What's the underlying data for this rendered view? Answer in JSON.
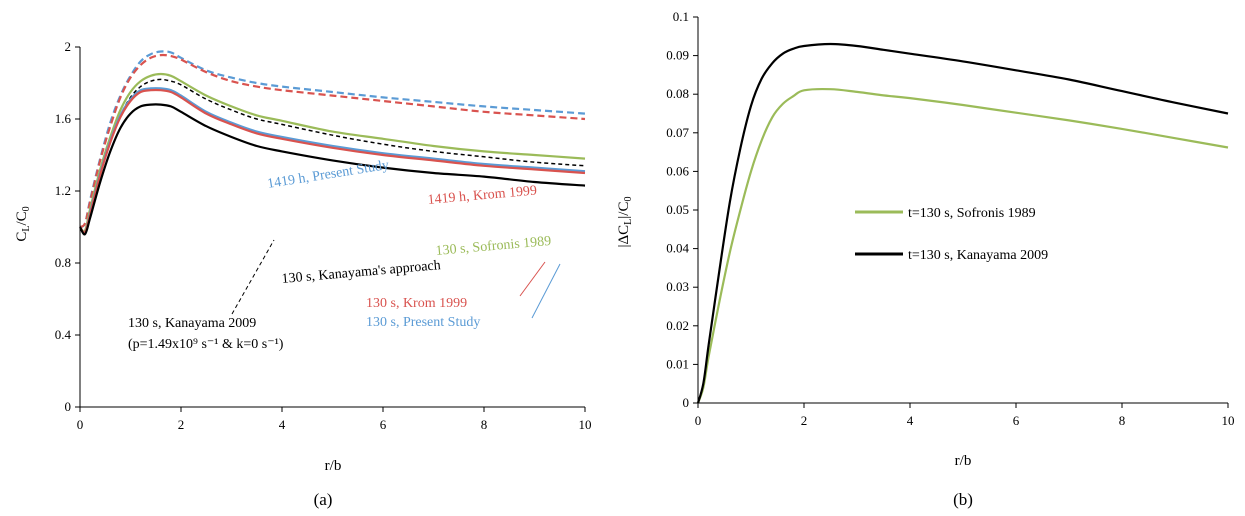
{
  "colors": {
    "present_study": "#5b9bd5",
    "krom": "#d9534f",
    "sofronis": "#9bbb59",
    "kanayama": "#000000"
  },
  "chart_data": [
    {
      "id": "a",
      "type": "line",
      "caption": "(a)",
      "xlabel": "r/b",
      "ylabel": "CL/C0",
      "xlim": [
        0,
        10
      ],
      "ylim": [
        0,
        2
      ],
      "xticks": [
        "0",
        "2",
        "4",
        "6",
        "8",
        "10"
      ],
      "yticks": [
        "0",
        "0.4",
        "0.8",
        "1.2",
        "1.6",
        "2"
      ],
      "grid": false,
      "x": [
        0,
        0.1,
        0.2,
        0.4,
        0.6,
        0.8,
        1.0,
        1.2,
        1.4,
        1.6,
        1.8,
        2.0,
        2.5,
        3,
        3.5,
        4,
        5,
        6,
        7,
        8,
        9,
        10
      ],
      "series": [
        {
          "name": "1419 h, Present Study",
          "color": "#5b9bd5",
          "dash": true,
          "values": [
            1.0,
            1.02,
            1.15,
            1.38,
            1.58,
            1.73,
            1.84,
            1.92,
            1.96,
            1.975,
            1.97,
            1.94,
            1.87,
            1.83,
            1.8,
            1.78,
            1.75,
            1.72,
            1.695,
            1.67,
            1.65,
            1.63
          ]
        },
        {
          "name": "1419 h, Krom 1999",
          "color": "#d9534f",
          "dash": true,
          "values": [
            1.0,
            1.02,
            1.14,
            1.37,
            1.56,
            1.72,
            1.83,
            1.9,
            1.94,
            1.955,
            1.95,
            1.93,
            1.86,
            1.81,
            1.78,
            1.76,
            1.73,
            1.7,
            1.67,
            1.64,
            1.62,
            1.6
          ]
        },
        {
          "name": "130 s, Kanayama 2009",
          "color": "#000000",
          "dash": true,
          "thin": true,
          "values": [
            1.0,
            0.98,
            1.1,
            1.3,
            1.48,
            1.62,
            1.72,
            1.78,
            1.81,
            1.82,
            1.81,
            1.79,
            1.71,
            1.65,
            1.6,
            1.57,
            1.51,
            1.46,
            1.42,
            1.39,
            1.36,
            1.34
          ]
        },
        {
          "name": "130 s, Sofronis 1989",
          "color": "#9bbb59",
          "dash": false,
          "values": [
            1.0,
            0.98,
            1.1,
            1.32,
            1.5,
            1.65,
            1.75,
            1.81,
            1.84,
            1.85,
            1.84,
            1.81,
            1.73,
            1.67,
            1.62,
            1.59,
            1.53,
            1.49,
            1.45,
            1.42,
            1.4,
            1.38
          ]
        },
        {
          "name": "130 s, Present Study",
          "color": "#5b9bd5",
          "dash": false,
          "values": [
            1.0,
            0.97,
            1.08,
            1.3,
            1.48,
            1.62,
            1.71,
            1.76,
            1.77,
            1.77,
            1.76,
            1.73,
            1.64,
            1.58,
            1.53,
            1.5,
            1.45,
            1.41,
            1.38,
            1.35,
            1.33,
            1.31
          ]
        },
        {
          "name": "130 s, Krom 1999",
          "color": "#d9534f",
          "dash": false,
          "values": [
            1.0,
            0.97,
            1.07,
            1.29,
            1.47,
            1.61,
            1.7,
            1.75,
            1.76,
            1.76,
            1.75,
            1.72,
            1.63,
            1.57,
            1.52,
            1.49,
            1.44,
            1.4,
            1.37,
            1.34,
            1.32,
            1.3
          ]
        },
        {
          "name": "130 s, Kanayama's approach",
          "color": "#000000",
          "dash": false,
          "values": [
            1.0,
            0.96,
            1.05,
            1.25,
            1.42,
            1.55,
            1.63,
            1.67,
            1.68,
            1.68,
            1.67,
            1.64,
            1.56,
            1.5,
            1.45,
            1.42,
            1.37,
            1.33,
            1.3,
            1.28,
            1.25,
            1.23
          ]
        }
      ],
      "annotations": [
        {
          "text": "1419 h, Present Study",
          "color": "#5b9bd5"
        },
        {
          "text": "1419 h, Krom 1999",
          "color": "#d9534f"
        },
        {
          "text": "130 s, Sofronis 1989",
          "color": "#9bbb59"
        },
        {
          "text": "130 s, Kanayama's approach",
          "color": "#000000"
        },
        {
          "text": "130 s, Kanayama 2009",
          "color": "#000000"
        },
        {
          "text": "(p=1.49x10⁹ s⁻¹  & k=0 s⁻¹)",
          "color": "#000000"
        },
        {
          "text": "130 s, Krom 1999",
          "color": "#d9534f"
        },
        {
          "text": "130 s, Present Study",
          "color": "#5b9bd5"
        }
      ]
    },
    {
      "id": "b",
      "type": "line",
      "caption": "(b)",
      "xlabel": "r/b",
      "ylabel": "|ΔCL|/C0",
      "xlim": [
        0,
        10
      ],
      "ylim": [
        0,
        0.1
      ],
      "xticks": [
        "0",
        "2",
        "4",
        "6",
        "8",
        "10"
      ],
      "yticks": [
        "0",
        "0.01",
        "0.02",
        "0.03",
        "0.04",
        "0.05",
        "0.06",
        "0.07",
        "0.08",
        "0.09",
        "0.1"
      ],
      "grid": false,
      "x": [
        0,
        0.1,
        0.2,
        0.4,
        0.6,
        0.8,
        1.0,
        1.2,
        1.4,
        1.6,
        1.8,
        2.0,
        2.5,
        3,
        3.5,
        4,
        5,
        6,
        7,
        8,
        9,
        10
      ],
      "legend": "center-left",
      "series": [
        {
          "name": "t=130 s, Sofronis 1989",
          "color": "#9bbb59",
          "values": [
            0,
            0.004,
            0.012,
            0.026,
            0.039,
            0.05,
            0.06,
            0.068,
            0.074,
            0.0775,
            0.0795,
            0.081,
            0.0813,
            0.0806,
            0.0797,
            0.079,
            0.0772,
            0.0752,
            0.0732,
            0.071,
            0.0686,
            0.0662
          ]
        },
        {
          "name": "t=130 s, Kanayama 2009",
          "color": "#000000",
          "values": [
            0,
            0.005,
            0.015,
            0.034,
            0.052,
            0.066,
            0.077,
            0.084,
            0.088,
            0.0905,
            0.0918,
            0.0925,
            0.093,
            0.0925,
            0.0915,
            0.0905,
            0.0885,
            0.0862,
            0.0838,
            0.0808,
            0.0778,
            0.075
          ]
        }
      ]
    }
  ]
}
